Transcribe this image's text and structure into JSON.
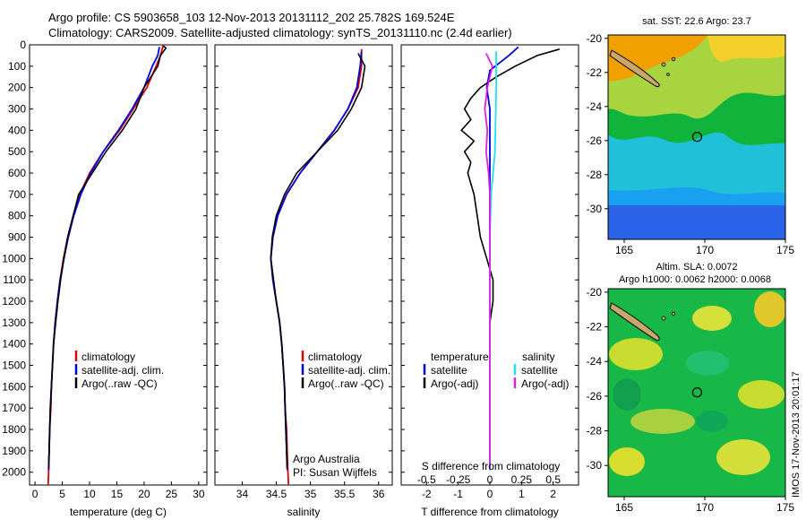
{
  "header": {
    "line1": "Argo profile: CS 5903658_103 12-Nov-2013 20131112_202 25.782S 169.524E",
    "line2": "Climatology: CARS2009. Satellite-adjusted climatology: synTS_20131110.nc (2.4d earlier)"
  },
  "colors": {
    "climatology": "#e00000",
    "satellite": "#0000e0",
    "argo": "#000000",
    "sat_salinity": "#20e0f0",
    "argo_adj_salinity": "#e020e0"
  },
  "chart_data": [
    {
      "type": "line",
      "id": "temperature",
      "xlabel": "temperature (deg C)",
      "ylabel": "",
      "xlim": [
        -1,
        31.5
      ],
      "ylim": [
        2060,
        0
      ],
      "xticks": [
        0,
        5,
        10,
        15,
        20,
        25,
        30
      ],
      "yticks": [
        0,
        100,
        200,
        300,
        400,
        500,
        600,
        700,
        800,
        900,
        1000,
        1100,
        1200,
        1300,
        1400,
        1500,
        1600,
        1700,
        1800,
        1900,
        2000
      ],
      "legend": [
        "climatology",
        "satellite-adj. clim.",
        "Argo(..raw -QC)"
      ],
      "series": [
        {
          "name": "climatology",
          "color": "#e00000",
          "points": [
            [
              23.5,
              0
            ],
            [
              23,
              50
            ],
            [
              22.2,
              100
            ],
            [
              20.5,
              200
            ],
            [
              18,
              300
            ],
            [
              15.5,
              400
            ],
            [
              12.5,
              500
            ],
            [
              10,
              600
            ],
            [
              8.2,
              700
            ],
            [
              7,
              800
            ],
            [
              6,
              900
            ],
            [
              5.2,
              1000
            ],
            [
              4.6,
              1100
            ],
            [
              4.1,
              1200
            ],
            [
              3.7,
              1300
            ],
            [
              3.4,
              1400
            ],
            [
              3.2,
              1500
            ],
            [
              3,
              1600
            ],
            [
              2.9,
              1700
            ],
            [
              2.7,
              1800
            ],
            [
              2.6,
              1900
            ],
            [
              2.5,
              2000
            ],
            [
              2.4,
              2060
            ]
          ]
        },
        {
          "name": "satellite",
          "color": "#0000e0",
          "points": [
            [
              22.8,
              10
            ],
            [
              22.5,
              50
            ],
            [
              21.5,
              100
            ],
            [
              20,
              200
            ],
            [
              17.8,
              300
            ],
            [
              15.3,
              400
            ],
            [
              12.5,
              500
            ],
            [
              10.2,
              600
            ],
            [
              8.4,
              700
            ],
            [
              7.1,
              800
            ],
            [
              6.1,
              900
            ],
            [
              5.3,
              1000
            ],
            [
              4.6,
              1100
            ],
            [
              4.1,
              1200
            ],
            [
              3.7,
              1300
            ],
            [
              3.4,
              1400
            ],
            [
              3.2,
              1500
            ],
            [
              3,
              1600
            ],
            [
              2.8,
              1700
            ],
            [
              2.7,
              1800
            ],
            [
              2.6,
              1900
            ],
            [
              2.5,
              1990
            ]
          ]
        },
        {
          "name": "argo",
          "color": "#000000",
          "points": [
            [
              23.5,
              5
            ],
            [
              24,
              15
            ],
            [
              23,
              50
            ],
            [
              22.5,
              100
            ],
            [
              20,
              200
            ],
            [
              18.5,
              300
            ],
            [
              16,
              400
            ],
            [
              13,
              500
            ],
            [
              10.5,
              600
            ],
            [
              8,
              700
            ],
            [
              7,
              800
            ],
            [
              6,
              900
            ],
            [
              5.3,
              1000
            ],
            [
              4.7,
              1100
            ],
            [
              4.2,
              1200
            ],
            [
              3.8,
              1300
            ],
            [
              3.4,
              1400
            ],
            [
              3.2,
              1500
            ],
            [
              3,
              1600
            ],
            [
              2.8,
              1700
            ],
            [
              2.7,
              1800
            ],
            [
              2.6,
              1900
            ],
            [
              2.5,
              1980
            ]
          ]
        }
      ]
    },
    {
      "type": "line",
      "id": "salinity",
      "xlabel": "salinity",
      "xlim": [
        33.6,
        36.2
      ],
      "ylim": [
        2060,
        0
      ],
      "xticks": [
        34,
        34.5,
        35,
        35.5,
        36
      ],
      "legend": [
        "climatology",
        "satellite-adj. clim.",
        "Argo(..raw -QC)"
      ],
      "annotations": [
        "Argo Australia",
        "PI: Susan Wijffels"
      ],
      "series": [
        {
          "name": "climatology",
          "color": "#e00000",
          "points": [
            [
              35.75,
              20
            ],
            [
              35.75,
              100
            ],
            [
              35.7,
              200
            ],
            [
              35.55,
              300
            ],
            [
              35.35,
              400
            ],
            [
              35.1,
              500
            ],
            [
              34.85,
              600
            ],
            [
              34.65,
              700
            ],
            [
              34.52,
              800
            ],
            [
              34.45,
              900
            ],
            [
              34.42,
              1000
            ],
            [
              34.45,
              1100
            ],
            [
              34.5,
              1200
            ],
            [
              34.55,
              1300
            ],
            [
              34.58,
              1400
            ],
            [
              34.6,
              1500
            ],
            [
              34.62,
              1600
            ],
            [
              34.63,
              1700
            ],
            [
              34.65,
              1800
            ],
            [
              34.66,
              1900
            ],
            [
              34.67,
              2000
            ],
            [
              34.68,
              2060
            ]
          ]
        },
        {
          "name": "satellite",
          "color": "#0000e0",
          "points": [
            [
              35.75,
              30
            ],
            [
              35.73,
              100
            ],
            [
              35.68,
              200
            ],
            [
              35.55,
              300
            ],
            [
              35.35,
              400
            ],
            [
              35.1,
              500
            ],
            [
              34.85,
              600
            ],
            [
              34.65,
              700
            ],
            [
              34.52,
              800
            ],
            [
              34.45,
              900
            ],
            [
              34.42,
              1000
            ],
            [
              34.45,
              1100
            ],
            [
              34.5,
              1200
            ],
            [
              34.55,
              1300
            ],
            [
              34.58,
              1400
            ],
            [
              34.6,
              1500
            ],
            [
              34.62,
              1600
            ],
            [
              34.63,
              1700
            ],
            [
              34.64,
              1800
            ],
            [
              34.65,
              1900
            ],
            [
              34.66,
              1990
            ]
          ]
        },
        {
          "name": "argo",
          "color": "#000000",
          "points": [
            [
              35.7,
              40
            ],
            [
              35.8,
              100
            ],
            [
              35.75,
              200
            ],
            [
              35.6,
              300
            ],
            [
              35.4,
              400
            ],
            [
              35.1,
              500
            ],
            [
              34.8,
              600
            ],
            [
              34.62,
              700
            ],
            [
              34.5,
              800
            ],
            [
              34.44,
              900
            ],
            [
              34.42,
              1000
            ],
            [
              34.46,
              1100
            ],
            [
              34.5,
              1200
            ],
            [
              34.55,
              1300
            ],
            [
              34.58,
              1400
            ],
            [
              34.6,
              1500
            ],
            [
              34.62,
              1600
            ],
            [
              34.63,
              1700
            ],
            [
              34.64,
              1800
            ],
            [
              34.65,
              1900
            ],
            [
              34.66,
              1980
            ]
          ]
        }
      ]
    },
    {
      "type": "line",
      "id": "differences",
      "xlabel": "T difference from climatology",
      "xlabel_top": "S difference from climatology",
      "xlim": [
        -2.8,
        2.8
      ],
      "ylim": [
        2060,
        0
      ],
      "xticks_T": [
        -2,
        -1,
        0,
        1,
        2
      ],
      "xticks_S": [
        -0.5,
        -0.25,
        0,
        0.25,
        0.5
      ],
      "legend_temperature": {
        "title": "temperature",
        "items": [
          "satellite",
          "Argo(-adj)"
        ]
      },
      "legend_salinity": {
        "title": "salinity",
        "items": [
          "satellite",
          "Argo(-adj)"
        ]
      },
      "series": [
        {
          "name": "T satellite",
          "color": "#0000e0",
          "points": [
            [
              0.9,
              10
            ],
            [
              0.6,
              50
            ],
            [
              0,
              120
            ],
            [
              -0.1,
              200
            ],
            [
              0,
              300
            ],
            [
              0,
              600
            ],
            [
              0,
              1000
            ],
            [
              0,
              1500
            ],
            [
              0,
              1990
            ]
          ]
        },
        {
          "name": "T Argo(-adj)",
          "color": "#000000",
          "points": [
            [
              2.2,
              20
            ],
            [
              1.5,
              50
            ],
            [
              0.8,
              100
            ],
            [
              0.2,
              150
            ],
            [
              -0.3,
              200
            ],
            [
              -0.6,
              250
            ],
            [
              -0.8,
              300
            ],
            [
              -0.6,
              350
            ],
            [
              -0.9,
              400
            ],
            [
              -0.5,
              450
            ],
            [
              -0.8,
              500
            ],
            [
              -0.6,
              550
            ],
            [
              -0.7,
              600
            ],
            [
              -0.5,
              700
            ],
            [
              -0.4,
              800
            ],
            [
              -0.3,
              900
            ],
            [
              -0.1,
              1000
            ],
            [
              0.1,
              1100
            ],
            [
              0.1,
              1200
            ],
            [
              0,
              1300
            ],
            [
              0,
              1500
            ],
            [
              0,
              1980
            ]
          ]
        },
        {
          "name": "S satellite",
          "color": "#20e0f0",
          "points": [
            [
              0.05,
              30
            ],
            [
              0.05,
              200
            ],
            [
              0.04,
              500
            ],
            [
              0.01,
              700
            ],
            [
              0,
              900
            ],
            [
              0,
              1200
            ],
            [
              0,
              1990
            ]
          ]
        },
        {
          "name": "S Argo(-adj)",
          "color": "#e020e0",
          "points": [
            [
              -0.03,
              40
            ],
            [
              0.02,
              100
            ],
            [
              -0.02,
              200
            ],
            [
              -0.04,
              300
            ],
            [
              -0.02,
              400
            ],
            [
              -0.03,
              500
            ],
            [
              -0.01,
              600
            ],
            [
              0,
              700
            ],
            [
              0,
              1000
            ],
            [
              0,
              1980
            ]
          ]
        }
      ]
    },
    {
      "type": "heatmap",
      "id": "sst_map",
      "title": "sat. SST: 22.6  Argo: 23.7",
      "xticks": [
        165,
        170,
        175
      ],
      "yticks": [
        -20,
        -22,
        -24,
        -26,
        -28,
        -30
      ],
      "xlim": [
        164,
        175
      ],
      "ylim": [
        -31.8,
        -19.8
      ],
      "argo_position": [
        169.524,
        -25.782
      ]
    },
    {
      "type": "heatmap",
      "id": "sla_map",
      "title1": "Altim. SLA: 0.0072",
      "title2": "Argo h1000: 0.0062 h2000: 0.0068",
      "xticks": [
        165,
        170,
        175
      ],
      "yticks": [
        -20,
        -22,
        -24,
        -26,
        -28,
        -30
      ],
      "xlim": [
        164,
        175
      ],
      "ylim": [
        -31.8,
        -19.8
      ],
      "argo_position": [
        169.524,
        -25.782
      ]
    }
  ],
  "footer": {
    "stamp": "IMOS 17-Nov-2013 20:01:17"
  }
}
